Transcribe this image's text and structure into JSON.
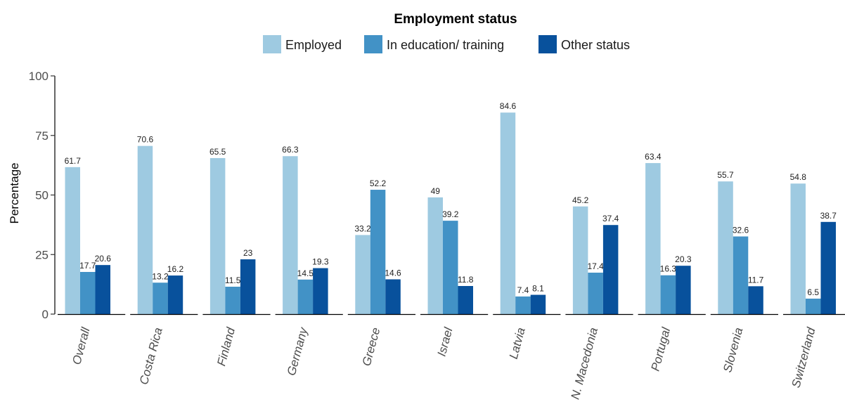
{
  "chart_data": {
    "type": "bar",
    "legend": {
      "title": "Employment status",
      "position": "top"
    },
    "ylabel": "Percentage",
    "xlabel": "",
    "ylim": [
      0,
      100
    ],
    "yticks": [
      0,
      25,
      50,
      75,
      100
    ],
    "grid": false,
    "categories": [
      "Overall",
      "Costa Rica",
      "Finland",
      "Germany",
      "Greece",
      "Israel",
      "Latvia",
      "N. Macedonia",
      "Portugal",
      "Slovenia",
      "Switzerland"
    ],
    "series": [
      {
        "name": "Employed",
        "color": "#9ecae1",
        "values": [
          61.7,
          70.6,
          65.5,
          66.3,
          33.2,
          49,
          84.6,
          45.2,
          63.4,
          55.7,
          54.8
        ],
        "labels": [
          "61.7",
          "70.6",
          "65.5",
          "66.3",
          "33.2",
          "49",
          "84.6",
          "45.2",
          "63.4",
          "55.7",
          "54.8"
        ]
      },
      {
        "name": "In education/ training",
        "color": "#4292c6",
        "values": [
          17.7,
          13.2,
          11.5,
          14.5,
          52.2,
          39.2,
          7.4,
          17.4,
          16.3,
          32.6,
          6.5
        ],
        "labels": [
          "17.7",
          "13.2",
          "11.5",
          "14.5",
          "52.2",
          "39.2",
          "7.4",
          "17.4",
          "16.3",
          "32.6",
          "6.5"
        ]
      },
      {
        "name": "Other status",
        "color": "#08519c",
        "values": [
          20.6,
          16.2,
          23,
          19.3,
          14.6,
          11.8,
          8.1,
          37.4,
          20.3,
          11.7,
          38.7
        ],
        "labels": [
          "20.6",
          "16.2",
          "23",
          "19.3",
          "14.6",
          "11.8",
          "8.1",
          "37.4",
          "20.3",
          "11.7",
          "38.7"
        ]
      }
    ]
  }
}
